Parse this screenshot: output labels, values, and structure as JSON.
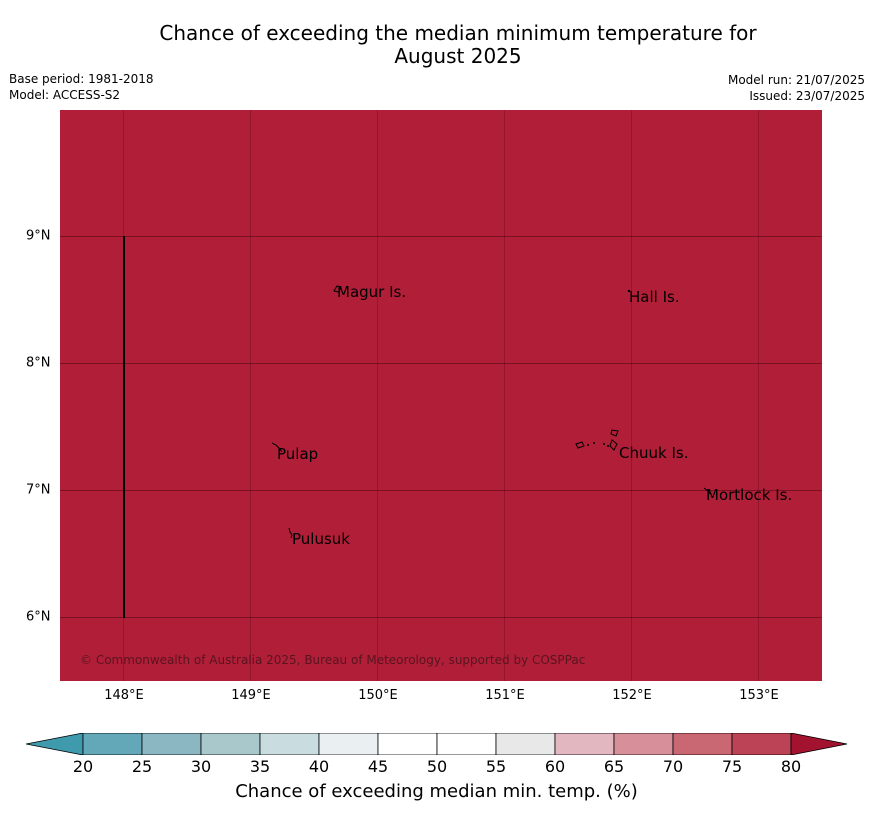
{
  "title_line1": "Chance of exceeding the median minimum temperature for",
  "title_line2": "August 2025",
  "base_period": "Base period: 1981-2018",
  "model": "Model: ACCESS-S2",
  "model_run": "Model run: 21/07/2025",
  "issued": "Issued: 23/07/2025",
  "map": {
    "background_color": "#b11e38",
    "lat_labels": [
      "9°N",
      "8°N",
      "7°N",
      "6°N"
    ],
    "lon_labels": [
      "148°E",
      "149°E",
      "150°E",
      "151°E",
      "152°E",
      "153°E"
    ],
    "places": [
      "Magur Is.",
      "Hall Is.",
      "Pulap",
      "Chuuk Is.",
      "Mortlock Is.",
      "Pulusuk"
    ],
    "copyright": "© Commonwealth of Australia 2025, Bureau of Meteorology, supported by COSPPac"
  },
  "colorbar": {
    "ticks": [
      "20",
      "25",
      "30",
      "35",
      "40",
      "45",
      "50",
      "55",
      "60",
      "65",
      "70",
      "75",
      "80"
    ],
    "colors": [
      "#62a8b8",
      "#8ab7c2",
      "#a9c8cc",
      "#c9dcdf",
      "#eaf0f2",
      "#ffffff",
      "#ffffff",
      "#e8e8e8",
      "#e2b7bf",
      "#d7909a",
      "#c96773",
      "#bc4255"
    ],
    "under_color": "#3f9aae",
    "over_color": "#a3122e",
    "label": "Chance of exceeding median min. temp. (%)"
  }
}
